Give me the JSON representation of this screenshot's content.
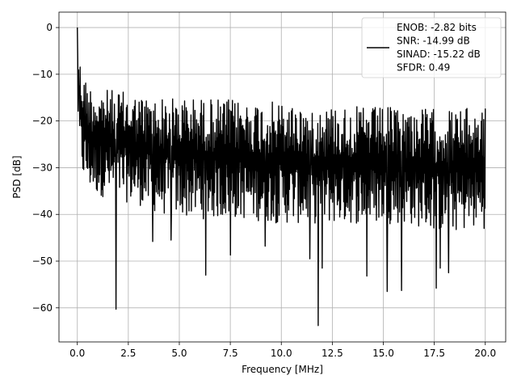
{
  "chart_data": {
    "type": "line",
    "title": "",
    "xlabel": "Frequency [MHz]",
    "ylabel": "PSD [dB]",
    "xlim": [
      -0.9,
      21.0
    ],
    "ylim": [
      -67.3,
      3.3
    ],
    "grid": true,
    "x_ticks": [
      0.0,
      2.5,
      5.0,
      7.5,
      10.0,
      12.5,
      15.0,
      17.5,
      20.0
    ],
    "x_tick_labels": [
      "0.0",
      "2.5",
      "5.0",
      "7.5",
      "10.0",
      "12.5",
      "15.0",
      "17.5",
      "20.0"
    ],
    "y_ticks": [
      0,
      -10,
      -20,
      -30,
      -40,
      -50,
      -60
    ],
    "y_tick_labels": [
      "0",
      "−10",
      "−20",
      "−30",
      "−40",
      "−50",
      "−60"
    ],
    "legend": {
      "position": "upper-right",
      "entries": [
        "ENOB: -2.82 bits",
        "SNR: -14.99 dB",
        "SINAD: -15.22 dB",
        "SFDR: 0.49"
      ]
    },
    "series": [
      {
        "color": "#000000",
        "x_range": [
          0.0,
          20.0
        ],
        "points": 1024,
        "envelope": {
          "x": [
            0.0,
            0.1,
            0.3,
            0.6,
            1.0,
            2.0,
            3.0,
            4.0,
            6.0,
            8.0,
            10.0,
            12.0,
            14.0,
            16.0,
            18.0,
            20.0
          ],
          "upper": [
            0.0,
            -6.0,
            -10.0,
            -12.0,
            -13.0,
            -13.5,
            -14.5,
            -15.0,
            -15.0,
            -15.5,
            -16.0,
            -16.5,
            -17.0,
            -17.0,
            -17.5,
            -17.0
          ],
          "lower": [
            -16.0,
            -28.0,
            -33.0,
            -35.0,
            -36.0,
            -37.0,
            -38.0,
            -40.0,
            -41.0,
            -41.0,
            -42.0,
            -42.0,
            -42.0,
            -42.0,
            -44.0,
            -43.0
          ]
        },
        "dips": [
          {
            "x": 1.9,
            "y": -60.3
          },
          {
            "x": 11.8,
            "y": -63.8
          },
          {
            "x": 6.3,
            "y": -53.0
          },
          {
            "x": 15.2,
            "y": -56.5
          },
          {
            "x": 15.9,
            "y": -56.3
          },
          {
            "x": 17.6,
            "y": -55.8
          },
          {
            "x": 18.2,
            "y": -52.5
          },
          {
            "x": 7.5,
            "y": -48.7
          },
          {
            "x": 11.4,
            "y": -49.5
          },
          {
            "x": 14.2,
            "y": -53.2
          },
          {
            "x": 12.0,
            "y": -51.5
          },
          {
            "x": 17.8,
            "y": -51.5
          },
          {
            "x": 3.7,
            "y": -45.8
          },
          {
            "x": 4.6,
            "y": -45.5
          },
          {
            "x": 9.2,
            "y": -46.8
          }
        ]
      }
    ]
  }
}
